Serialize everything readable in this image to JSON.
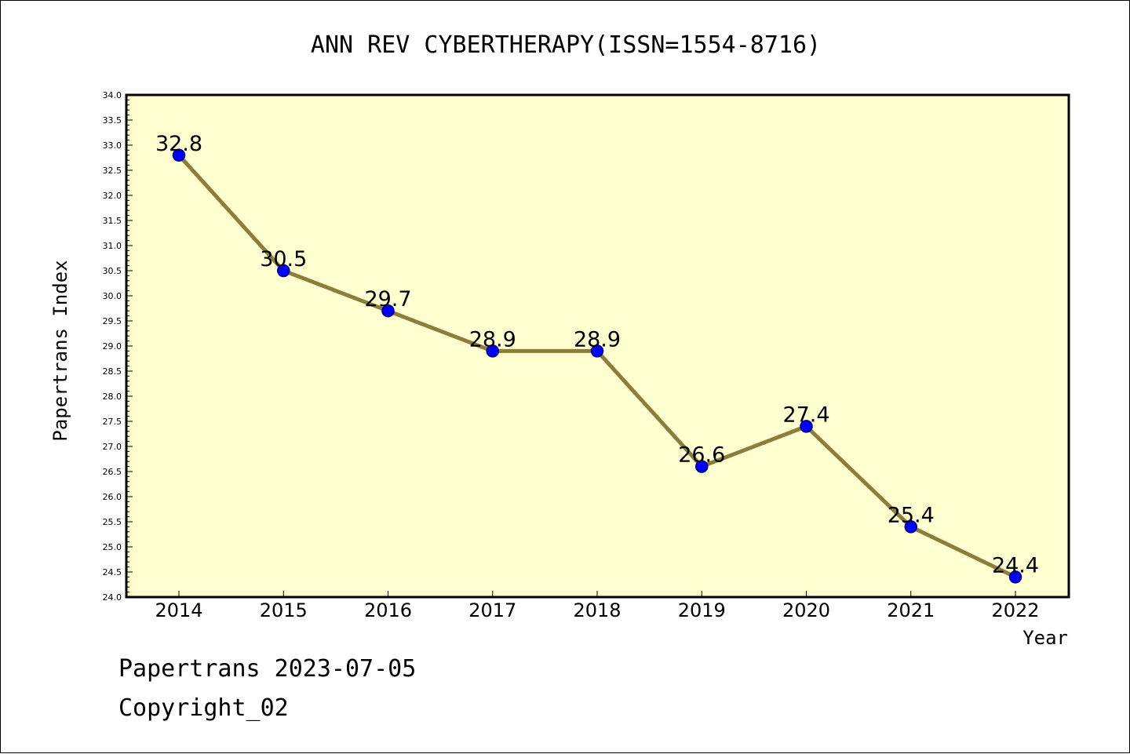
{
  "chart_data": {
    "type": "line",
    "title": "ANN REV CYBERTHERAPY(ISSN=1554-8716)",
    "xlabel": "Year",
    "ylabel": "Papertrans Index",
    "categories": [
      "2014",
      "2015",
      "2016",
      "2017",
      "2018",
      "2019",
      "2020",
      "2021",
      "2022"
    ],
    "series": [
      {
        "values": [
          32.8,
          30.5,
          29.7,
          28.9,
          28.9,
          26.6,
          27.4,
          25.4,
          24.4
        ]
      }
    ],
    "data_labels": [
      "32.8",
      "30.5",
      "29.7",
      "28.9",
      "28.9",
      "26.6",
      "27.4",
      "25.4",
      "24.4"
    ],
    "ylim": [
      24.0,
      34.0
    ],
    "yticks": [
      "24.0",
      "24.5",
      "25.0",
      "25.5",
      "26.0",
      "26.5",
      "27.0",
      "27.5",
      "28.0",
      "28.5",
      "29.0",
      "29.5",
      "30.0",
      "30.5",
      "31.0",
      "31.5",
      "32.0",
      "32.5",
      "33.0",
      "33.5",
      "34.0"
    ],
    "grid": false,
    "colors": {
      "plot_background": "#ffffd0",
      "line": "#8b7d3a",
      "marker": "#0000ff",
      "marker_edge": "#000080"
    }
  },
  "footer": {
    "line1": "Papertrans 2023-07-05",
    "line2": "Copyright_02"
  }
}
